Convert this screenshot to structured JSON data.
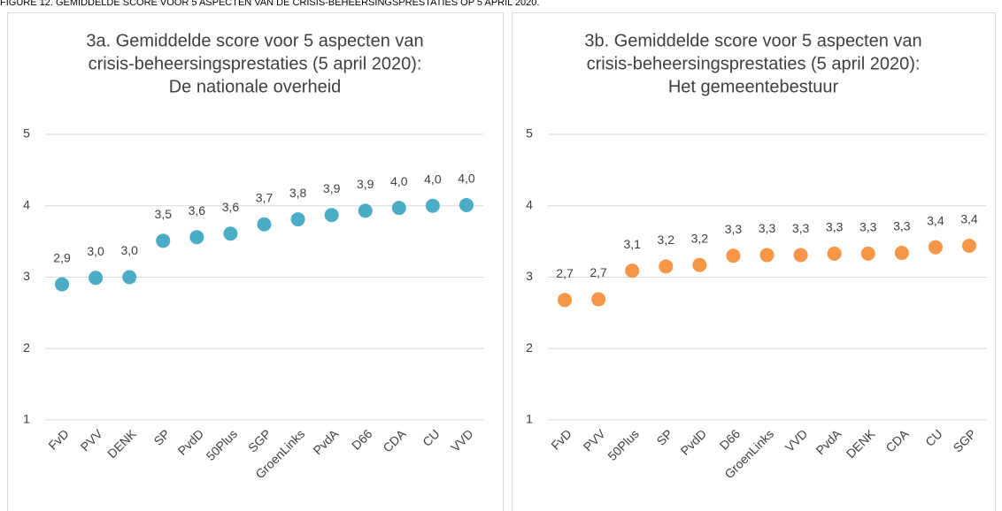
{
  "caption": "FIGURE 12. GEMIDDELDE SCORE VOOR 5 ASPECTEN VAN DE CRISIS-BEHEERSINGSPRESTATIES OP 5 APRIL 2020.",
  "chart_data": [
    {
      "type": "scatter",
      "title": [
        "3a. Gemiddelde score voor 5 aspecten van",
        "crisis-beheersingsprestaties (5 april 2020):",
        "De nationale overheid"
      ],
      "categories": [
        "FvD",
        "PVV",
        "DENK",
        "SP",
        "PvdD",
        "50Plus",
        "SGP",
        "GroenLinks",
        "PvdA",
        "D66",
        "CDA",
        "CU",
        "VVD"
      ],
      "values": [
        2.9,
        2.99,
        3.0,
        3.51,
        3.56,
        3.61,
        3.74,
        3.81,
        3.87,
        3.93,
        3.97,
        4.0,
        4.01
      ],
      "value_labels": [
        "2,9",
        "3,0",
        "3,0",
        "3,5",
        "3,6",
        "3,6",
        "3,7",
        "3,8",
        "3,9",
        "3,9",
        "4,0",
        "4,0",
        "4,0"
      ],
      "color": "#4bacc6",
      "ylim": [
        1,
        5
      ],
      "yticks": [
        1,
        2,
        3,
        4,
        5
      ],
      "grid": true
    },
    {
      "type": "scatter",
      "title": [
        "3b. Gemiddelde score voor 5 aspecten van",
        "crisis-beheersingsprestaties (5 april 2020):",
        "Het gemeentebestuur"
      ],
      "categories": [
        "FvD",
        "PVV",
        "50Plus",
        "SP",
        "PvdD",
        "D66",
        "GroenLinks",
        "VVD",
        "PvdA",
        "DENK",
        "CDA",
        "CU",
        "SGP"
      ],
      "values": [
        2.68,
        2.69,
        3.09,
        3.15,
        3.17,
        3.3,
        3.31,
        3.31,
        3.33,
        3.33,
        3.34,
        3.42,
        3.44
      ],
      "value_labels": [
        "2,7",
        "2,7",
        "3,1",
        "3,2",
        "3,2",
        "3,3",
        "3,3",
        "3,3",
        "3,3",
        "3,3",
        "3,3",
        "3,4",
        "3,4"
      ],
      "color": "#f79646",
      "ylim": [
        1,
        5
      ],
      "yticks": [
        1,
        2,
        3,
        4,
        5
      ],
      "grid": true
    }
  ]
}
